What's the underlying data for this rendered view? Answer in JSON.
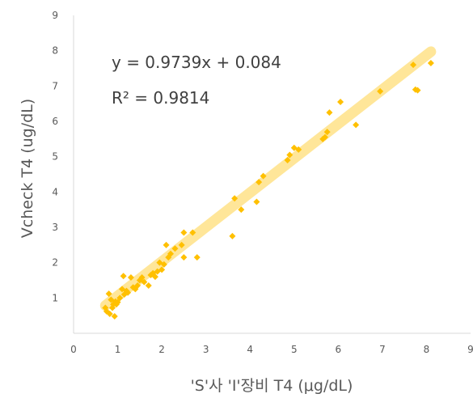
{
  "chart_data": {
    "type": "scatter",
    "xlabel": "'S'사 'I'장비 T4 (μg/dL)",
    "ylabel": "Vcheck T4 (ug/dL)",
    "xlim": [
      0,
      9
    ],
    "ylim": [
      0,
      9
    ],
    "xticks": [
      "0",
      "1",
      "2",
      "3",
      "4",
      "5",
      "6",
      "7",
      "8",
      "9"
    ],
    "yticks": [
      "1",
      "2",
      "3",
      "4",
      "5",
      "6",
      "7",
      "8",
      "9"
    ],
    "grid": false,
    "marker_color": "#FFC000",
    "trendline_color": "#FFE699",
    "trendline": {
      "slope": 0.9739,
      "intercept": 0.084
    },
    "equation_text": "y = 0.9739x + 0.084",
    "r2_text": "R² = 0.9814",
    "series": [
      {
        "x": [
          0.72,
          0.75,
          0.8,
          0.82,
          0.85,
          0.88,
          0.9,
          0.93,
          0.95,
          0.97,
          1.0,
          1.05,
          1.1,
          1.13,
          1.15,
          1.2,
          1.23,
          1.3,
          1.35,
          1.4,
          1.45,
          1.5,
          1.55,
          1.6,
          1.7,
          1.75,
          1.8,
          1.85,
          1.9,
          1.95,
          2.0,
          2.05,
          2.1,
          2.15,
          2.2,
          2.3,
          2.45,
          2.5,
          2.5,
          2.7,
          2.8,
          3.6,
          3.65,
          3.8,
          4.15,
          4.2,
          4.3,
          4.85,
          4.9,
          5.0,
          5.1,
          5.65,
          5.7,
          5.75,
          5.8,
          6.05,
          6.4,
          6.95,
          7.7,
          7.75,
          7.8,
          8.1
        ],
        "y": [
          0.72,
          0.62,
          1.12,
          0.55,
          0.95,
          0.72,
          0.82,
          0.48,
          0.9,
          0.82,
          0.88,
          1.0,
          1.25,
          1.62,
          1.1,
          1.2,
          1.15,
          1.58,
          1.3,
          1.25,
          1.35,
          1.5,
          1.58,
          1.45,
          1.35,
          1.65,
          1.7,
          1.6,
          1.75,
          2.0,
          1.8,
          1.95,
          2.5,
          2.15,
          2.25,
          2.4,
          2.5,
          2.85,
          2.15,
          2.85,
          2.15,
          2.75,
          3.82,
          3.5,
          3.72,
          4.28,
          4.45,
          4.9,
          5.05,
          5.25,
          5.2,
          5.5,
          5.55,
          5.7,
          6.25,
          6.55,
          5.9,
          6.85,
          7.6,
          6.9,
          6.88,
          7.65
        ]
      }
    ]
  }
}
